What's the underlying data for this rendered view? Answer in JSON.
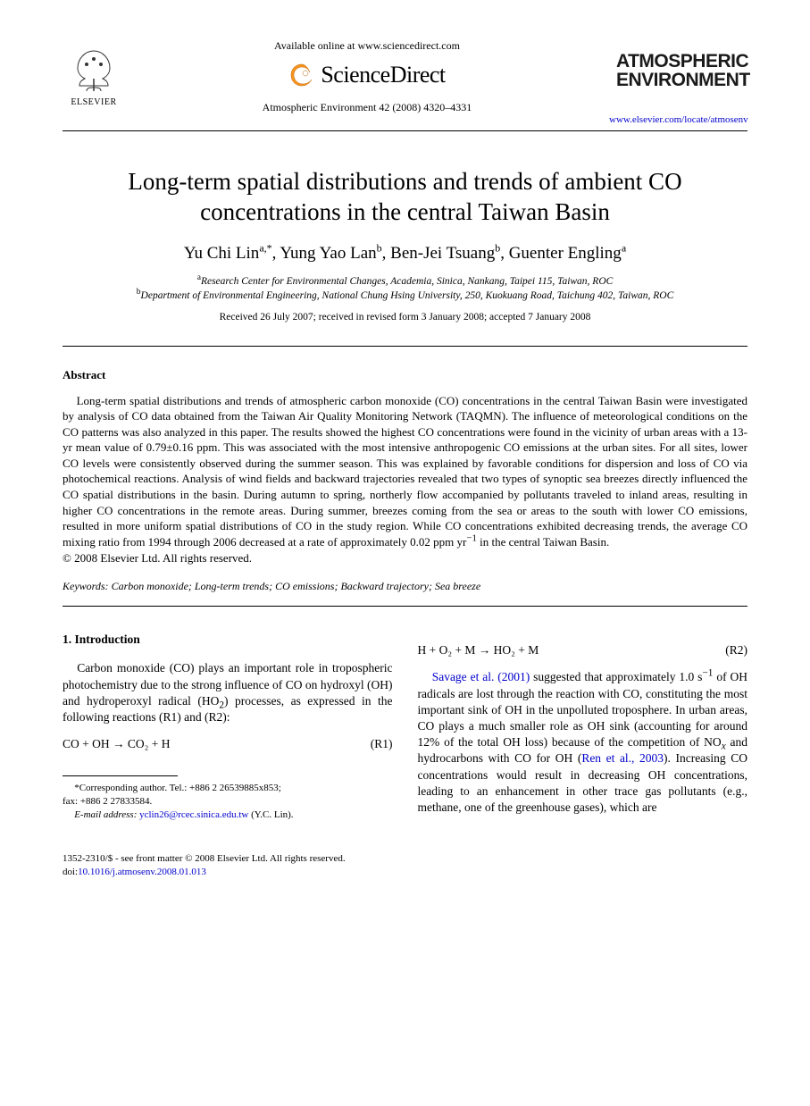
{
  "header": {
    "elsevier_label": "ELSEVIER",
    "available_online": "Available online at www.sciencedirect.com",
    "sciencedirect_label": "ScienceDirect",
    "journal_ref": "Atmospheric Environment 42 (2008) 4320–4331",
    "journal_logo_line1": "ATMOSPHERIC",
    "journal_logo_line2": "ENVIRONMENT",
    "journal_url": "www.elsevier.com/locate/atmosenv"
  },
  "title": "Long-term spatial distributions and trends of ambient CO concentrations in the central Taiwan Basin",
  "authors_html": "Yu Chi Lin<sup>a,*</sup>, Yung Yao Lan<sup>b</sup>, Ben-Jei Tsuang<sup>b</sup>, Guenter Engling<sup>a</sup>",
  "affiliations": [
    {
      "sup": "a",
      "text": "Research Center for Environmental Changes, Academia, Sinica, Nankang, Taipei 115, Taiwan, ROC"
    },
    {
      "sup": "b",
      "text": "Department of Environmental Engineering, National Chung Hsing University, 250, Kuokuang Road, Taichung 402, Taiwan, ROC"
    }
  ],
  "dates": "Received 26 July 2007; received in revised form 3 January 2008; accepted 7 January 2008",
  "abstract": {
    "heading": "Abstract",
    "body_html": "Long-term spatial distributions and trends of atmospheric carbon monoxide (CO) concentrations in the central Taiwan Basin were investigated by analysis of CO data obtained from the Taiwan Air Quality Monitoring Network (TAQMN). The influence of meteorological conditions on the CO patterns was also analyzed in this paper. The results showed the highest CO concentrations were found in the vicinity of urban areas with a 13-yr mean value of 0.79±0.16 ppm. This was associated with the most intensive anthropogenic CO emissions at the urban sites. For all sites, lower CO levels were consistently observed during the summer season. This was explained by favorable conditions for dispersion and loss of CO via photochemical reactions. Analysis of wind fields and backward trajectories revealed that two types of synoptic sea breezes directly influenced the CO spatial distributions in the basin. During autumn to spring, northerly flow accompanied by pollutants traveled to inland areas, resulting in higher CO concentrations in the remote areas. During summer, breezes coming from the sea or areas to the south with lower CO emissions, resulted in more uniform spatial distributions of CO in the study region. While CO concentrations exhibited decreasing trends, the average CO mixing ratio from 1994 through 2006 decreased at a rate of approximately 0.02 ppm yr<sup>−1</sup> in the central Taiwan Basin.",
    "copyright": "© 2008 Elsevier Ltd. All rights reserved."
  },
  "keywords": {
    "label": "Keywords:",
    "text": "Carbon monoxide; Long-term trends; CO emissions; Backward trajectory; Sea breeze"
  },
  "body": {
    "left": {
      "section_heading": "1.  Introduction",
      "para1_html": "Carbon monoxide (CO) plays an important role in tropospheric photochemistry due to the strong influence of CO on hydroxyl (OH) and hydroperoxyl radical (HO<sub>2</sub>) processes, as expressed in the following reactions (R1) and (R2):",
      "eq1_lhs": "CO + OH → CO₂ + H",
      "eq1_label": "(R1)",
      "footnote_corr": "*Corresponding author. Tel.: +886 2 26539885x853;",
      "footnote_fax": "fax: +886 2 27833584.",
      "footnote_email_label": "E-mail address:",
      "footnote_email": "yclin26@rcec.sinica.edu.tw",
      "footnote_email_tail": "(Y.C. Lin)."
    },
    "right": {
      "eq2_lhs": "H + O₂ + M → HO₂ + M",
      "eq2_label": "(R2)",
      "para_html": "<span class=\"cite-link\">Savage et al. (2001)</span> suggested that approximately 1.0 s<sup>−1</sup> of OH radicals are lost through the reaction with CO, constituting the most important sink of OH in the unpolluted troposphere. In urban areas, CO plays a much smaller role as OH sink (accounting for around 12% of the total OH loss) because of the competition of NO<sub><i>x</i></sub> and hydrocarbons with CO for OH (<span class=\"cite-link\">Ren et al., 2003</span>). Increasing CO concentrations would result in decreasing OH concentrations, leading to an enhancement in other trace gas pollutants (e.g., methane, one of the greenhouse gases), which are"
    }
  },
  "footer": {
    "issn_line": "1352-2310/$ - see front matter © 2008 Elsevier Ltd. All rights reserved.",
    "doi_label": "doi:",
    "doi": "10.1016/j.atmosenv.2008.01.013"
  },
  "colors": {
    "text": "#000000",
    "link": "#0000cc",
    "background": "#ffffff",
    "logo_orange": "#f7941e"
  }
}
